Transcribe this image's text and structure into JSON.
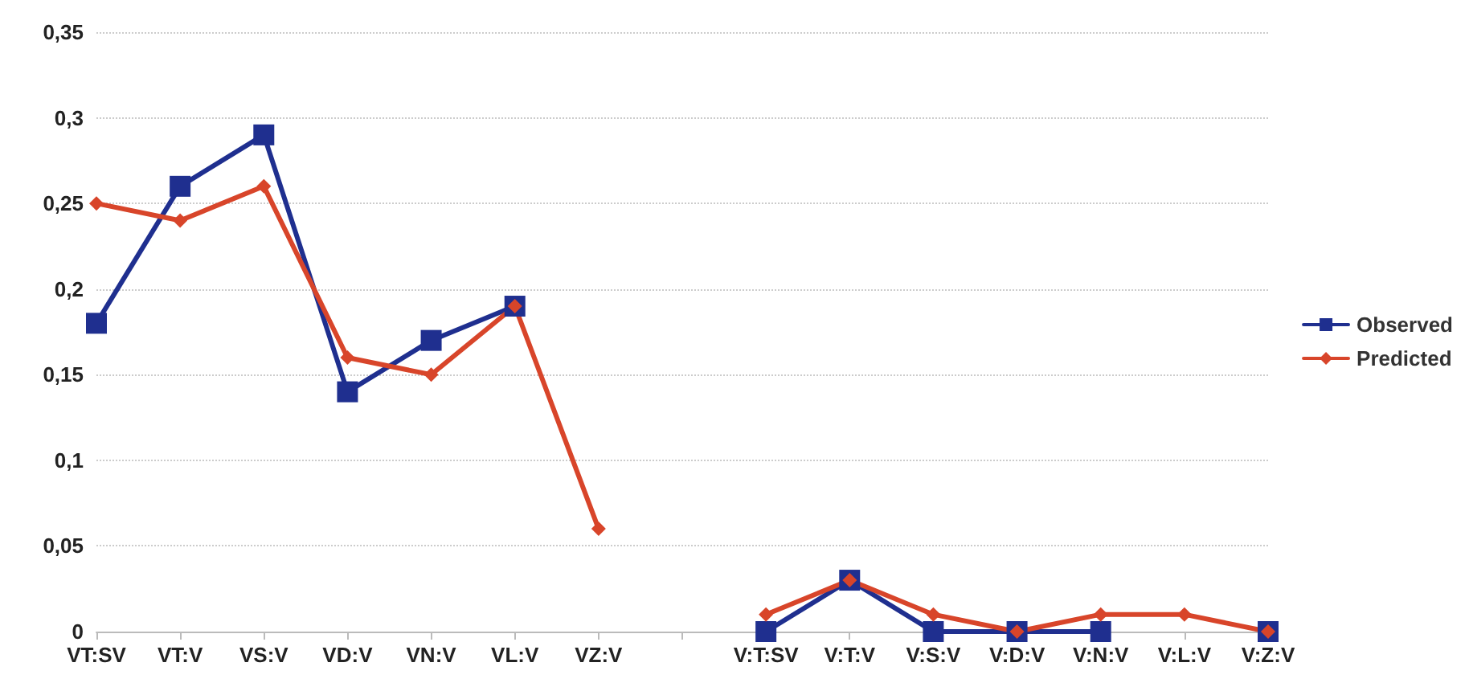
{
  "chart_data": {
    "type": "line",
    "categories": [
      "VT:SV",
      "VT:V",
      "VS:V",
      "VD:V",
      "VN:V",
      "VL:V",
      "VZ:V",
      null,
      "V:T:SV",
      "V:T:V",
      "V:S:V",
      "V:D:V",
      "V:N:V",
      "V:L:V",
      "V:Z:V"
    ],
    "series": [
      {
        "name": "Observed",
        "color": "#1f2f8f",
        "marker": "square",
        "values": [
          0.18,
          0.26,
          0.29,
          0.14,
          0.17,
          0.19,
          null,
          null,
          0,
          0.03,
          0,
          0,
          0,
          null,
          0
        ]
      },
      {
        "name": "Predicted",
        "color": "#d8452a",
        "marker": "diamond",
        "values": [
          0.25,
          0.24,
          0.26,
          0.16,
          0.15,
          0.19,
          0.06,
          null,
          0.01,
          0.03,
          0.01,
          0,
          0.01,
          0.01,
          0
        ]
      }
    ],
    "ylim": [
      0,
      0.35
    ],
    "yticks": [
      0,
      {
        "value": 0.05,
        "label": "0,05"
      },
      {
        "value": 0.1,
        "label": "0,1"
      },
      {
        "value": 0.15,
        "label": "0,15"
      },
      {
        "value": 0.2,
        "label": "0,2"
      },
      {
        "value": 0.25,
        "label": "0,25"
      },
      {
        "value": 0.3,
        "label": "0,3"
      },
      {
        "value": 0.35,
        "label": "0,35"
      }
    ],
    "grid": "y",
    "legend": "right",
    "line_style": "solid"
  }
}
